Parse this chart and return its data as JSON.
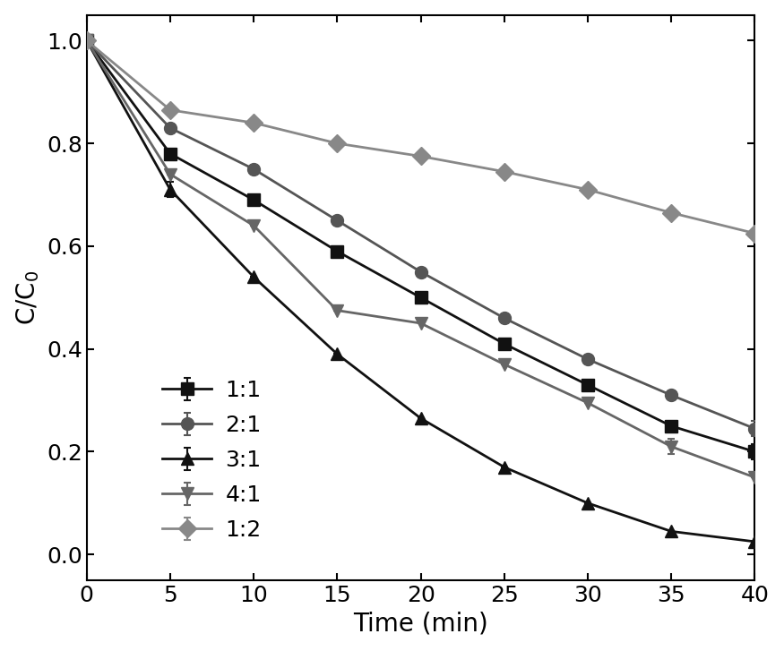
{
  "time": [
    0,
    5,
    10,
    15,
    20,
    25,
    30,
    35,
    40
  ],
  "series": {
    "1:1": {
      "values": [
        1.0,
        0.78,
        0.69,
        0.59,
        0.5,
        0.41,
        0.33,
        0.25,
        0.2
      ],
      "color": "#111111",
      "marker": "s",
      "linestyle": "-",
      "yerr": [
        0.0,
        0.0,
        0.0,
        0.0,
        0.0,
        0.0,
        0.0,
        0.0,
        0.015
      ]
    },
    "2:1": {
      "values": [
        1.0,
        0.83,
        0.75,
        0.65,
        0.55,
        0.46,
        0.38,
        0.31,
        0.245
      ],
      "color": "#555555",
      "marker": "o",
      "linestyle": "-",
      "yerr": [
        0.0,
        0.0,
        0.0,
        0.0,
        0.0,
        0.0,
        0.0,
        0.0,
        0.015
      ]
    },
    "3:1": {
      "values": [
        1.0,
        0.71,
        0.54,
        0.39,
        0.265,
        0.17,
        0.1,
        0.045,
        0.025
      ],
      "color": "#111111",
      "marker": "^",
      "linestyle": "-",
      "yerr": [
        0.0,
        0.015,
        0.0,
        0.0,
        0.0,
        0.0,
        0.0,
        0.0,
        0.0
      ]
    },
    "4:1": {
      "values": [
        1.0,
        0.74,
        0.64,
        0.475,
        0.45,
        0.37,
        0.295,
        0.21,
        0.15
      ],
      "color": "#666666",
      "marker": "v",
      "linestyle": "-",
      "yerr": [
        0.0,
        0.0,
        0.0,
        0.0,
        0.0,
        0.0,
        0.0,
        0.015,
        0.0
      ]
    },
    "1:2": {
      "values": [
        1.0,
        0.865,
        0.84,
        0.8,
        0.775,
        0.745,
        0.71,
        0.665,
        0.625
      ],
      "color": "#888888",
      "marker": "D",
      "linestyle": "-",
      "yerr": [
        0.0,
        0.0,
        0.0,
        0.0,
        0.0,
        0.0,
        0.0,
        0.0,
        0.0
      ]
    }
  },
  "xlabel": "Time (min)",
  "ylabel": "C/C$_0$",
  "xlim": [
    0,
    40
  ],
  "ylim": [
    -0.05,
    1.05
  ],
  "xticks": [
    0,
    5,
    10,
    15,
    20,
    25,
    30,
    35,
    40
  ],
  "yticks": [
    0.0,
    0.2,
    0.4,
    0.6,
    0.8,
    1.0
  ],
  "legend_order": [
    "1:1",
    "2:1",
    "3:1",
    "4:1",
    "1:2"
  ],
  "label_fontsize": 20,
  "tick_fontsize": 18,
  "legend_fontsize": 18,
  "linewidth": 2.0,
  "markersize": 10
}
